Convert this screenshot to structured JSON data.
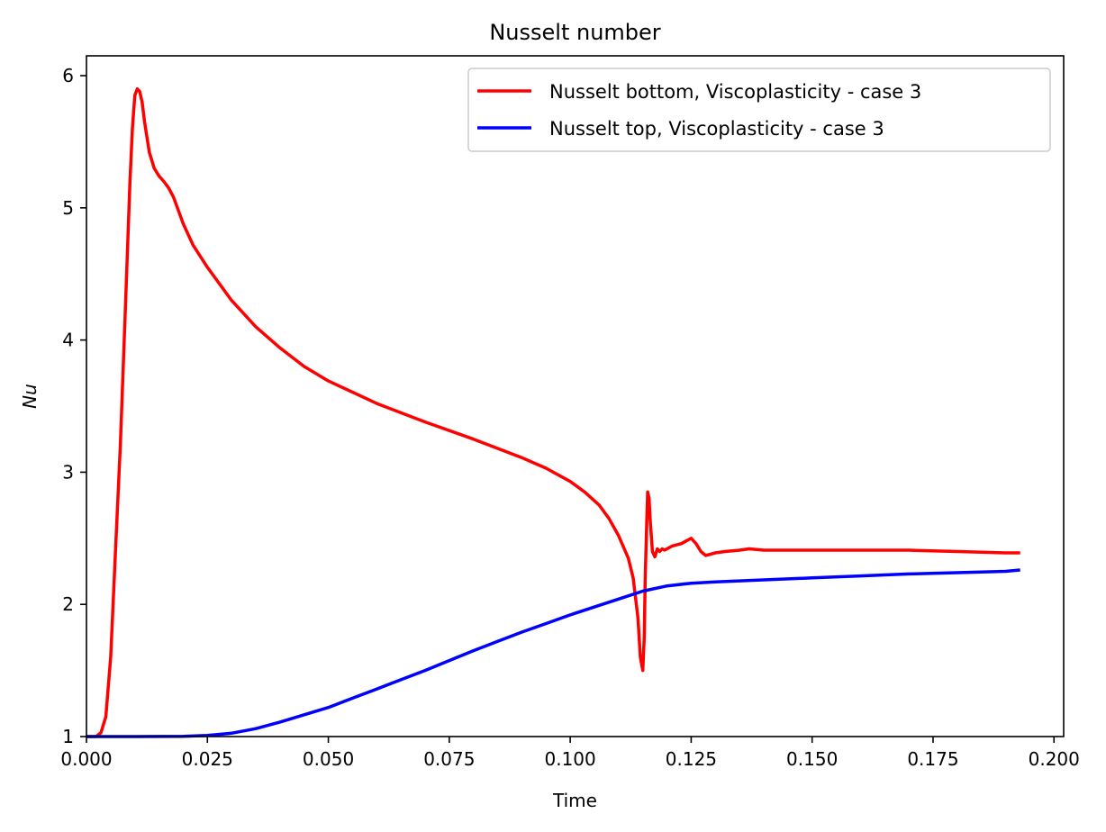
{
  "chart_data": {
    "type": "line",
    "title": "Nusselt number",
    "xlabel": "Time",
    "ylabel": "Nu",
    "xlim": [
      0.0,
      0.202
    ],
    "ylim": [
      1.0,
      6.15
    ],
    "xticks": [
      0.0,
      0.025,
      0.05,
      0.075,
      0.1,
      0.125,
      0.15,
      0.175,
      0.2
    ],
    "xtick_labels": [
      "0.000",
      "0.025",
      "0.050",
      "0.075",
      "0.100",
      "0.125",
      "0.150",
      "0.175",
      "0.200"
    ],
    "yticks": [
      1,
      2,
      3,
      4,
      5,
      6
    ],
    "ytick_labels": [
      "1",
      "2",
      "3",
      "4",
      "5",
      "6"
    ],
    "grid": false,
    "legend_position": "top-right",
    "series": [
      {
        "name": "Nusselt bottom, Viscoplasticity - case 3",
        "color": "#ff0000",
        "x": [
          0.0,
          0.002,
          0.003,
          0.004,
          0.005,
          0.006,
          0.007,
          0.008,
          0.009,
          0.0095,
          0.01,
          0.0105,
          0.011,
          0.0115,
          0.012,
          0.013,
          0.014,
          0.015,
          0.016,
          0.017,
          0.018,
          0.019,
          0.02,
          0.022,
          0.025,
          0.03,
          0.035,
          0.04,
          0.045,
          0.05,
          0.06,
          0.07,
          0.08,
          0.09,
          0.095,
          0.1,
          0.103,
          0.106,
          0.108,
          0.11,
          0.112,
          0.113,
          0.114,
          0.1145,
          0.115,
          0.1153,
          0.1155,
          0.1158,
          0.116,
          0.1163,
          0.1165,
          0.117,
          0.1175,
          0.118,
          0.1185,
          0.119,
          0.1195,
          0.12,
          0.121,
          0.122,
          0.123,
          0.124,
          0.125,
          0.126,
          0.127,
          0.128,
          0.13,
          0.132,
          0.135,
          0.137,
          0.14,
          0.15,
          0.16,
          0.17,
          0.18,
          0.19,
          0.193
        ],
        "values": [
          1.0,
          1.0,
          1.03,
          1.15,
          1.6,
          2.4,
          3.2,
          4.2,
          5.2,
          5.6,
          5.85,
          5.9,
          5.88,
          5.8,
          5.65,
          5.42,
          5.3,
          5.24,
          5.2,
          5.15,
          5.08,
          4.98,
          4.88,
          4.72,
          4.55,
          4.3,
          4.1,
          3.94,
          3.8,
          3.69,
          3.52,
          3.38,
          3.25,
          3.11,
          3.03,
          2.93,
          2.85,
          2.75,
          2.65,
          2.52,
          2.35,
          2.2,
          1.9,
          1.6,
          1.5,
          1.75,
          2.2,
          2.6,
          2.85,
          2.8,
          2.65,
          2.4,
          2.36,
          2.42,
          2.4,
          2.42,
          2.41,
          2.42,
          2.44,
          2.45,
          2.46,
          2.48,
          2.5,
          2.46,
          2.4,
          2.37,
          2.39,
          2.4,
          2.41,
          2.42,
          2.41,
          2.41,
          2.41,
          2.41,
          2.4,
          2.39,
          2.39
        ]
      },
      {
        "name": "Nusselt top, Viscoplasticity - case 3",
        "color": "#0000ff",
        "x": [
          0.0,
          0.01,
          0.02,
          0.025,
          0.03,
          0.035,
          0.04,
          0.045,
          0.05,
          0.055,
          0.06,
          0.065,
          0.07,
          0.075,
          0.08,
          0.085,
          0.09,
          0.095,
          0.1,
          0.105,
          0.11,
          0.115,
          0.12,
          0.125,
          0.13,
          0.14,
          0.15,
          0.16,
          0.17,
          0.18,
          0.19,
          0.193
        ],
        "values": [
          1.0,
          1.0,
          1.002,
          1.008,
          1.025,
          1.06,
          1.11,
          1.165,
          1.22,
          1.29,
          1.36,
          1.43,
          1.5,
          1.575,
          1.65,
          1.72,
          1.79,
          1.855,
          1.92,
          1.98,
          2.04,
          2.1,
          2.14,
          2.16,
          2.17,
          2.185,
          2.2,
          2.215,
          2.23,
          2.24,
          2.25,
          2.26
        ]
      }
    ]
  }
}
